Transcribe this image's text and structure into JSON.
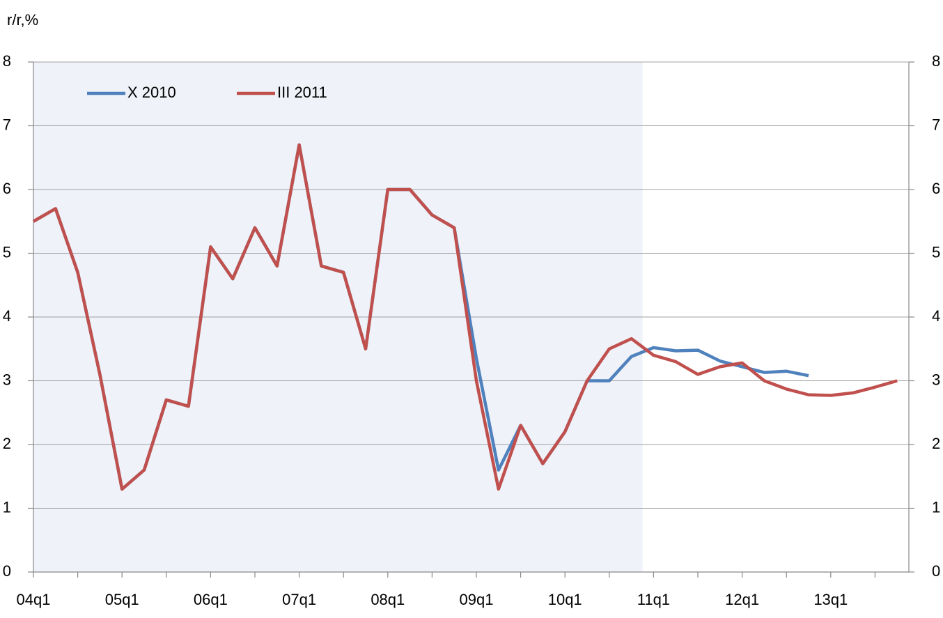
{
  "chart_data": {
    "type": "line",
    "title": "r/r,%",
    "categories": [
      "04q1",
      null,
      null,
      null,
      "05q1",
      null,
      null,
      null,
      "06q1",
      null,
      null,
      null,
      "07q1",
      null,
      null,
      null,
      "08q1",
      null,
      null,
      null,
      "09q1",
      null,
      null,
      null,
      "10q1",
      null,
      null,
      null,
      "11q1",
      null,
      null,
      null,
      "12q1",
      null,
      null,
      null,
      "13q1",
      null,
      null,
      null
    ],
    "series": [
      {
        "name": "X 2010",
        "color": "#4f81bd",
        "values": [
          5.5,
          5.7,
          4.7,
          3.1,
          1.3,
          1.6,
          2.7,
          2.6,
          5.1,
          4.6,
          5.4,
          4.8,
          6.7,
          4.8,
          4.7,
          3.5,
          6.0,
          6.0,
          5.6,
          5.4,
          3.35,
          1.6,
          2.3,
          1.7,
          2.2,
          3.0,
          3.0,
          3.38,
          3.52,
          3.47,
          3.48,
          3.31,
          3.22,
          3.13,
          3.15,
          3.08,
          null,
          null,
          null,
          null
        ]
      },
      {
        "name": "III 2011",
        "color": "#c0504d",
        "values": [
          5.5,
          5.7,
          4.7,
          3.1,
          1.3,
          1.6,
          2.7,
          2.6,
          5.1,
          4.6,
          5.4,
          4.8,
          6.7,
          4.8,
          4.7,
          3.5,
          6.0,
          6.0,
          5.6,
          5.4,
          3.0,
          1.3,
          2.3,
          1.7,
          2.2,
          3.0,
          3.5,
          3.66,
          3.4,
          3.3,
          3.1,
          3.22,
          3.28,
          3.0,
          2.87,
          2.78,
          2.77,
          2.81,
          2.9,
          3.0
        ]
      }
    ],
    "ylim": [
      0,
      8
    ],
    "yticks": [
      0,
      1,
      2,
      3,
      4,
      5,
      6,
      7,
      8
    ],
    "y2lim": [
      0,
      8
    ],
    "y2ticks": [
      0,
      1,
      2,
      3,
      4,
      5,
      6,
      7,
      8
    ],
    "grid": true,
    "legend": "top-left"
  }
}
